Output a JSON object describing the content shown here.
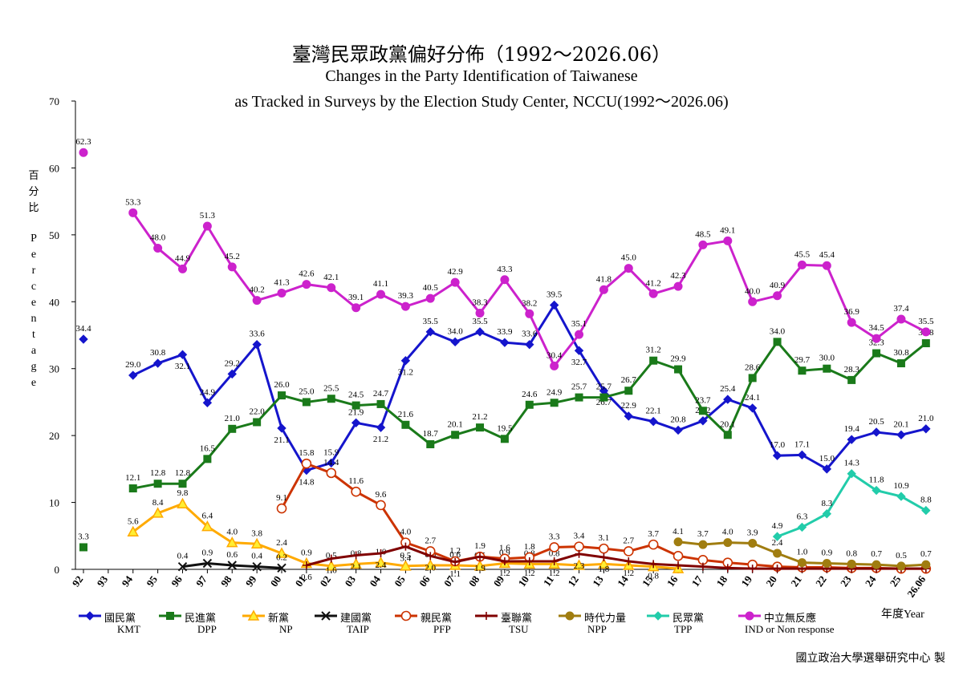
{
  "title_zh": "臺灣民眾政黨偏好分佈（1992～2026.06）",
  "title_en_1": "Changes in the Party Identification of Taiwanese",
  "title_en_2": "as Tracked in Surveys by the Election Study Center, NCCU(1992～2026.06)",
  "ylabel_zh": "百分比",
  "ylabel_en": "Percentage",
  "xunit": "年度Year",
  "footer": "國立政治大學選舉研究中心 製",
  "chart_data": {
    "type": "line",
    "ylim": [
      0,
      70
    ],
    "yticks": [
      "0",
      "10",
      "20",
      "30",
      "40",
      "50",
      "60",
      "70"
    ],
    "x": [
      "92",
      "93",
      "94",
      "95",
      "96",
      "97",
      "98",
      "99",
      "00",
      "01",
      "02",
      "03",
      "04",
      "05",
      "06",
      "07",
      "08",
      "09",
      "10",
      "11",
      "12",
      "13",
      "14",
      "15",
      "16",
      "17",
      "18",
      "19",
      "20",
      "21",
      "22",
      "23",
      "24",
      "25",
      "26.06"
    ],
    "series": [
      {
        "name": "國民黨",
        "name_en": "KMT",
        "color": "#1515cc",
        "marker": "diamond",
        "values": [
          34.4,
          null,
          29.0,
          30.8,
          32.1,
          24.9,
          29.2,
          33.6,
          21.1,
          14.8,
          15.9,
          21.9,
          21.2,
          31.2,
          35.5,
          34.0,
          35.5,
          33.9,
          33.6,
          39.5,
          32.7,
          26.7,
          22.9,
          22.1,
          20.8,
          22.2,
          25.4,
          24.1,
          17.0,
          17.1,
          15.0,
          19.4,
          20.5,
          20.1,
          21.0
        ],
        "labels": [
          "34.4",
          null,
          "29.0",
          "30.8",
          "32.1",
          "24.9",
          "29.2",
          "33.6",
          "21.1",
          "14.8",
          "15.9",
          "21.9",
          "21.2",
          "31.2",
          "35.5",
          "34.0",
          "35.5",
          "33.9",
          "33.6",
          "39.5",
          "32.7",
          "26.7",
          "22.9",
          "22.1",
          "20.8",
          "22.2",
          "25.4",
          "24.1",
          "17.0",
          "17.1",
          "15.0",
          "19.4",
          "20.5",
          "20.1",
          "21.0"
        ]
      },
      {
        "name": "民進黨",
        "name_en": "DPP",
        "color": "#1a7a1a",
        "marker": "square",
        "values": [
          3.3,
          null,
          12.1,
          12.8,
          12.8,
          16.5,
          21.0,
          22.0,
          26.0,
          25.0,
          25.5,
          24.5,
          24.7,
          21.6,
          18.7,
          20.1,
          21.2,
          19.5,
          24.6,
          24.9,
          25.7,
          25.7,
          26.7,
          31.2,
          29.9,
          23.7,
          20.1,
          28.6,
          34.0,
          29.7,
          30.0,
          28.3,
          32.3,
          30.8,
          33.8
        ],
        "labels": [
          "3.3",
          null,
          "12.1",
          "12.8",
          "12.8",
          "16.5",
          "21.0",
          "22.0",
          "26.0",
          "25.0",
          "25.5",
          "24.5",
          "24.7",
          "21.6",
          "18.7",
          "20.1",
          "21.2",
          "19.5",
          "24.6",
          "24.9",
          "25.7",
          "25.7",
          "26.7",
          "31.2",
          "29.9",
          "23.7",
          "20.1",
          "28.6",
          "34.0",
          "29.7",
          "30.0",
          "28.3",
          "32.3",
          "30.8",
          "33.8"
        ]
      },
      {
        "name": "新黨",
        "name_en": "NP",
        "color": "#ffaa00",
        "marker": "triangle",
        "values": [
          null,
          null,
          5.6,
          8.4,
          9.8,
          6.4,
          4.0,
          3.8,
          2.4,
          0.9,
          0.5,
          0.8,
          1.0,
          0.5,
          0.6,
          0.6,
          0.5,
          0.9,
          0.8,
          0.8,
          0.6,
          0.8,
          0.6,
          0.4,
          0.1,
          null,
          null,
          null,
          null,
          null,
          null,
          null,
          null,
          null,
          null
        ],
        "labels": [
          null,
          null,
          "5.6",
          "8.4",
          "9.8",
          "6.4",
          "4.0",
          "3.8",
          "2.4",
          "0.9",
          "0.5",
          "0.8",
          "1.0",
          "0.5",
          "0.6",
          "0.6",
          "0.5",
          "0.9",
          "0.8",
          "0.8",
          null,
          null,
          null,
          null,
          null,
          null,
          null,
          null,
          null,
          null,
          null,
          null,
          null,
          null,
          null
        ]
      },
      {
        "name": "建國黨",
        "name_en": "TAIP",
        "color": "#111111",
        "marker": "x",
        "values": [
          null,
          null,
          null,
          null,
          0.4,
          0.9,
          0.6,
          0.4,
          0.2,
          null,
          null,
          null,
          null,
          null,
          null,
          null,
          null,
          null,
          null,
          null,
          null,
          null,
          null,
          null,
          null,
          null,
          null,
          null,
          null,
          null,
          null,
          null,
          null,
          null,
          null
        ],
        "labels": [
          null,
          null,
          null,
          null,
          "0.4",
          "0.9",
          "0.6",
          "0.4",
          "0.2",
          null,
          null,
          null,
          null,
          null,
          null,
          null,
          null,
          null,
          null,
          null,
          null,
          null,
          null,
          null,
          null,
          null,
          null,
          null,
          null,
          null,
          null,
          null,
          null,
          null,
          null
        ]
      },
      {
        "name": "親民黨",
        "name_en": "PFP",
        "color": "#cc3300",
        "marker": "circle",
        "values": [
          null,
          null,
          null,
          null,
          null,
          null,
          null,
          null,
          9.1,
          15.8,
          14.4,
          11.6,
          9.6,
          4.0,
          2.7,
          1.2,
          1.9,
          1.6,
          1.8,
          3.3,
          3.4,
          3.1,
          2.7,
          3.7,
          2.0,
          1.4,
          1.0,
          0.7,
          0.4,
          0.3,
          0.3,
          0.2,
          0.2,
          0.1,
          0.1
        ],
        "labels": [
          null,
          null,
          null,
          null,
          null,
          null,
          null,
          null,
          "9.1",
          "15.8",
          "14.4",
          "11.6",
          "9.6",
          "4.0",
          "2.7",
          "1.2",
          "1.9",
          "1.6",
          "1.8",
          "3.3",
          "3.4",
          "3.1",
          "2.7",
          "3.7",
          null,
          null,
          null,
          null,
          null,
          null,
          null,
          null,
          null,
          null,
          null
        ]
      },
      {
        "name": "臺聯黨",
        "name_en": "TSU",
        "color": "#800000",
        "marker": "plus",
        "values": [
          null,
          null,
          null,
          null,
          null,
          null,
          null,
          null,
          null,
          0.6,
          1.6,
          2.1,
          2.4,
          3.4,
          2.0,
          1.1,
          1.9,
          1.2,
          1.2,
          1.2,
          2.3,
          1.8,
          1.2,
          0.8,
          0.6,
          0.4,
          0.2,
          0.1,
          0.1,
          0.1,
          0.1,
          0.1,
          0.1,
          0.1,
          0.1
        ],
        "labels": [
          null,
          null,
          null,
          null,
          null,
          null,
          null,
          null,
          null,
          "0.6",
          "1.6",
          "2.1",
          "2.4",
          "3.4",
          "2.0",
          "1.1",
          "1.9",
          "1.2",
          "1.2",
          "1.2",
          "2.3",
          "1.8",
          "1.2",
          "0.8",
          null,
          null,
          null,
          null,
          null,
          null,
          null,
          null,
          null,
          null,
          null
        ]
      },
      {
        "name": "時代力量",
        "name_en": "NPP",
        "color": "#a07d10",
        "marker": "circle-filled",
        "values": [
          null,
          null,
          null,
          null,
          null,
          null,
          null,
          null,
          null,
          null,
          null,
          null,
          null,
          null,
          null,
          null,
          null,
          null,
          null,
          null,
          null,
          null,
          null,
          null,
          4.1,
          3.7,
          4.0,
          3.9,
          2.4,
          1.0,
          0.9,
          0.8,
          0.7,
          0.5,
          0.7
        ],
        "labels": [
          null,
          null,
          null,
          null,
          null,
          null,
          null,
          null,
          null,
          null,
          null,
          null,
          null,
          null,
          null,
          null,
          null,
          null,
          null,
          null,
          null,
          null,
          null,
          null,
          "4.1",
          "3.7",
          "4.0",
          "3.9",
          "2.4",
          "1.0",
          "0.9",
          "0.8",
          "0.7",
          "0.5",
          "0.7"
        ]
      },
      {
        "name": "民眾黨",
        "name_en": "TPP",
        "color": "#22ccaa",
        "marker": "diamond",
        "values": [
          null,
          null,
          null,
          null,
          null,
          null,
          null,
          null,
          null,
          null,
          null,
          null,
          null,
          null,
          null,
          null,
          null,
          null,
          null,
          null,
          null,
          null,
          null,
          null,
          null,
          null,
          null,
          null,
          4.9,
          6.3,
          8.3,
          14.3,
          11.8,
          10.9,
          8.8
        ],
        "labels": [
          null,
          null,
          null,
          null,
          null,
          null,
          null,
          null,
          null,
          null,
          null,
          null,
          null,
          null,
          null,
          null,
          null,
          null,
          null,
          null,
          null,
          null,
          null,
          null,
          null,
          null,
          null,
          null,
          "4.9",
          "6.3",
          "8.3",
          "14.3",
          "11.8",
          "10.9",
          "8.8"
        ]
      },
      {
        "name": "中立無反應",
        "name_en": "IND or Non response",
        "color": "#cc22cc",
        "marker": "circle-filled",
        "values": [
          62.3,
          null,
          53.3,
          48.0,
          44.9,
          51.3,
          45.2,
          40.2,
          41.3,
          42.6,
          42.1,
          39.1,
          41.1,
          39.3,
          40.5,
          42.9,
          38.3,
          43.3,
          38.2,
          30.4,
          35.1,
          41.8,
          45.0,
          41.2,
          42.3,
          48.5,
          49.1,
          40.0,
          40.9,
          45.5,
          45.4,
          36.9,
          34.5,
          37.4,
          35.5
        ],
        "labels": [
          "62.3",
          null,
          "53.3",
          "48.0",
          "44.9",
          "51.3",
          "45.2",
          "40.2",
          "41.3",
          "42.6",
          "42.1",
          "39.1",
          "41.1",
          "39.3",
          "40.5",
          "42.9",
          "38.3",
          "43.3",
          "38.2",
          "30.4",
          "35.1",
          "41.8",
          "45.0",
          "41.2",
          "42.3",
          "48.5",
          "49.1",
          "40.0",
          "40.9",
          "45.5",
          "45.4",
          "36.9",
          "34.5",
          "37.4",
          "35.5"
        ]
      }
    ]
  }
}
